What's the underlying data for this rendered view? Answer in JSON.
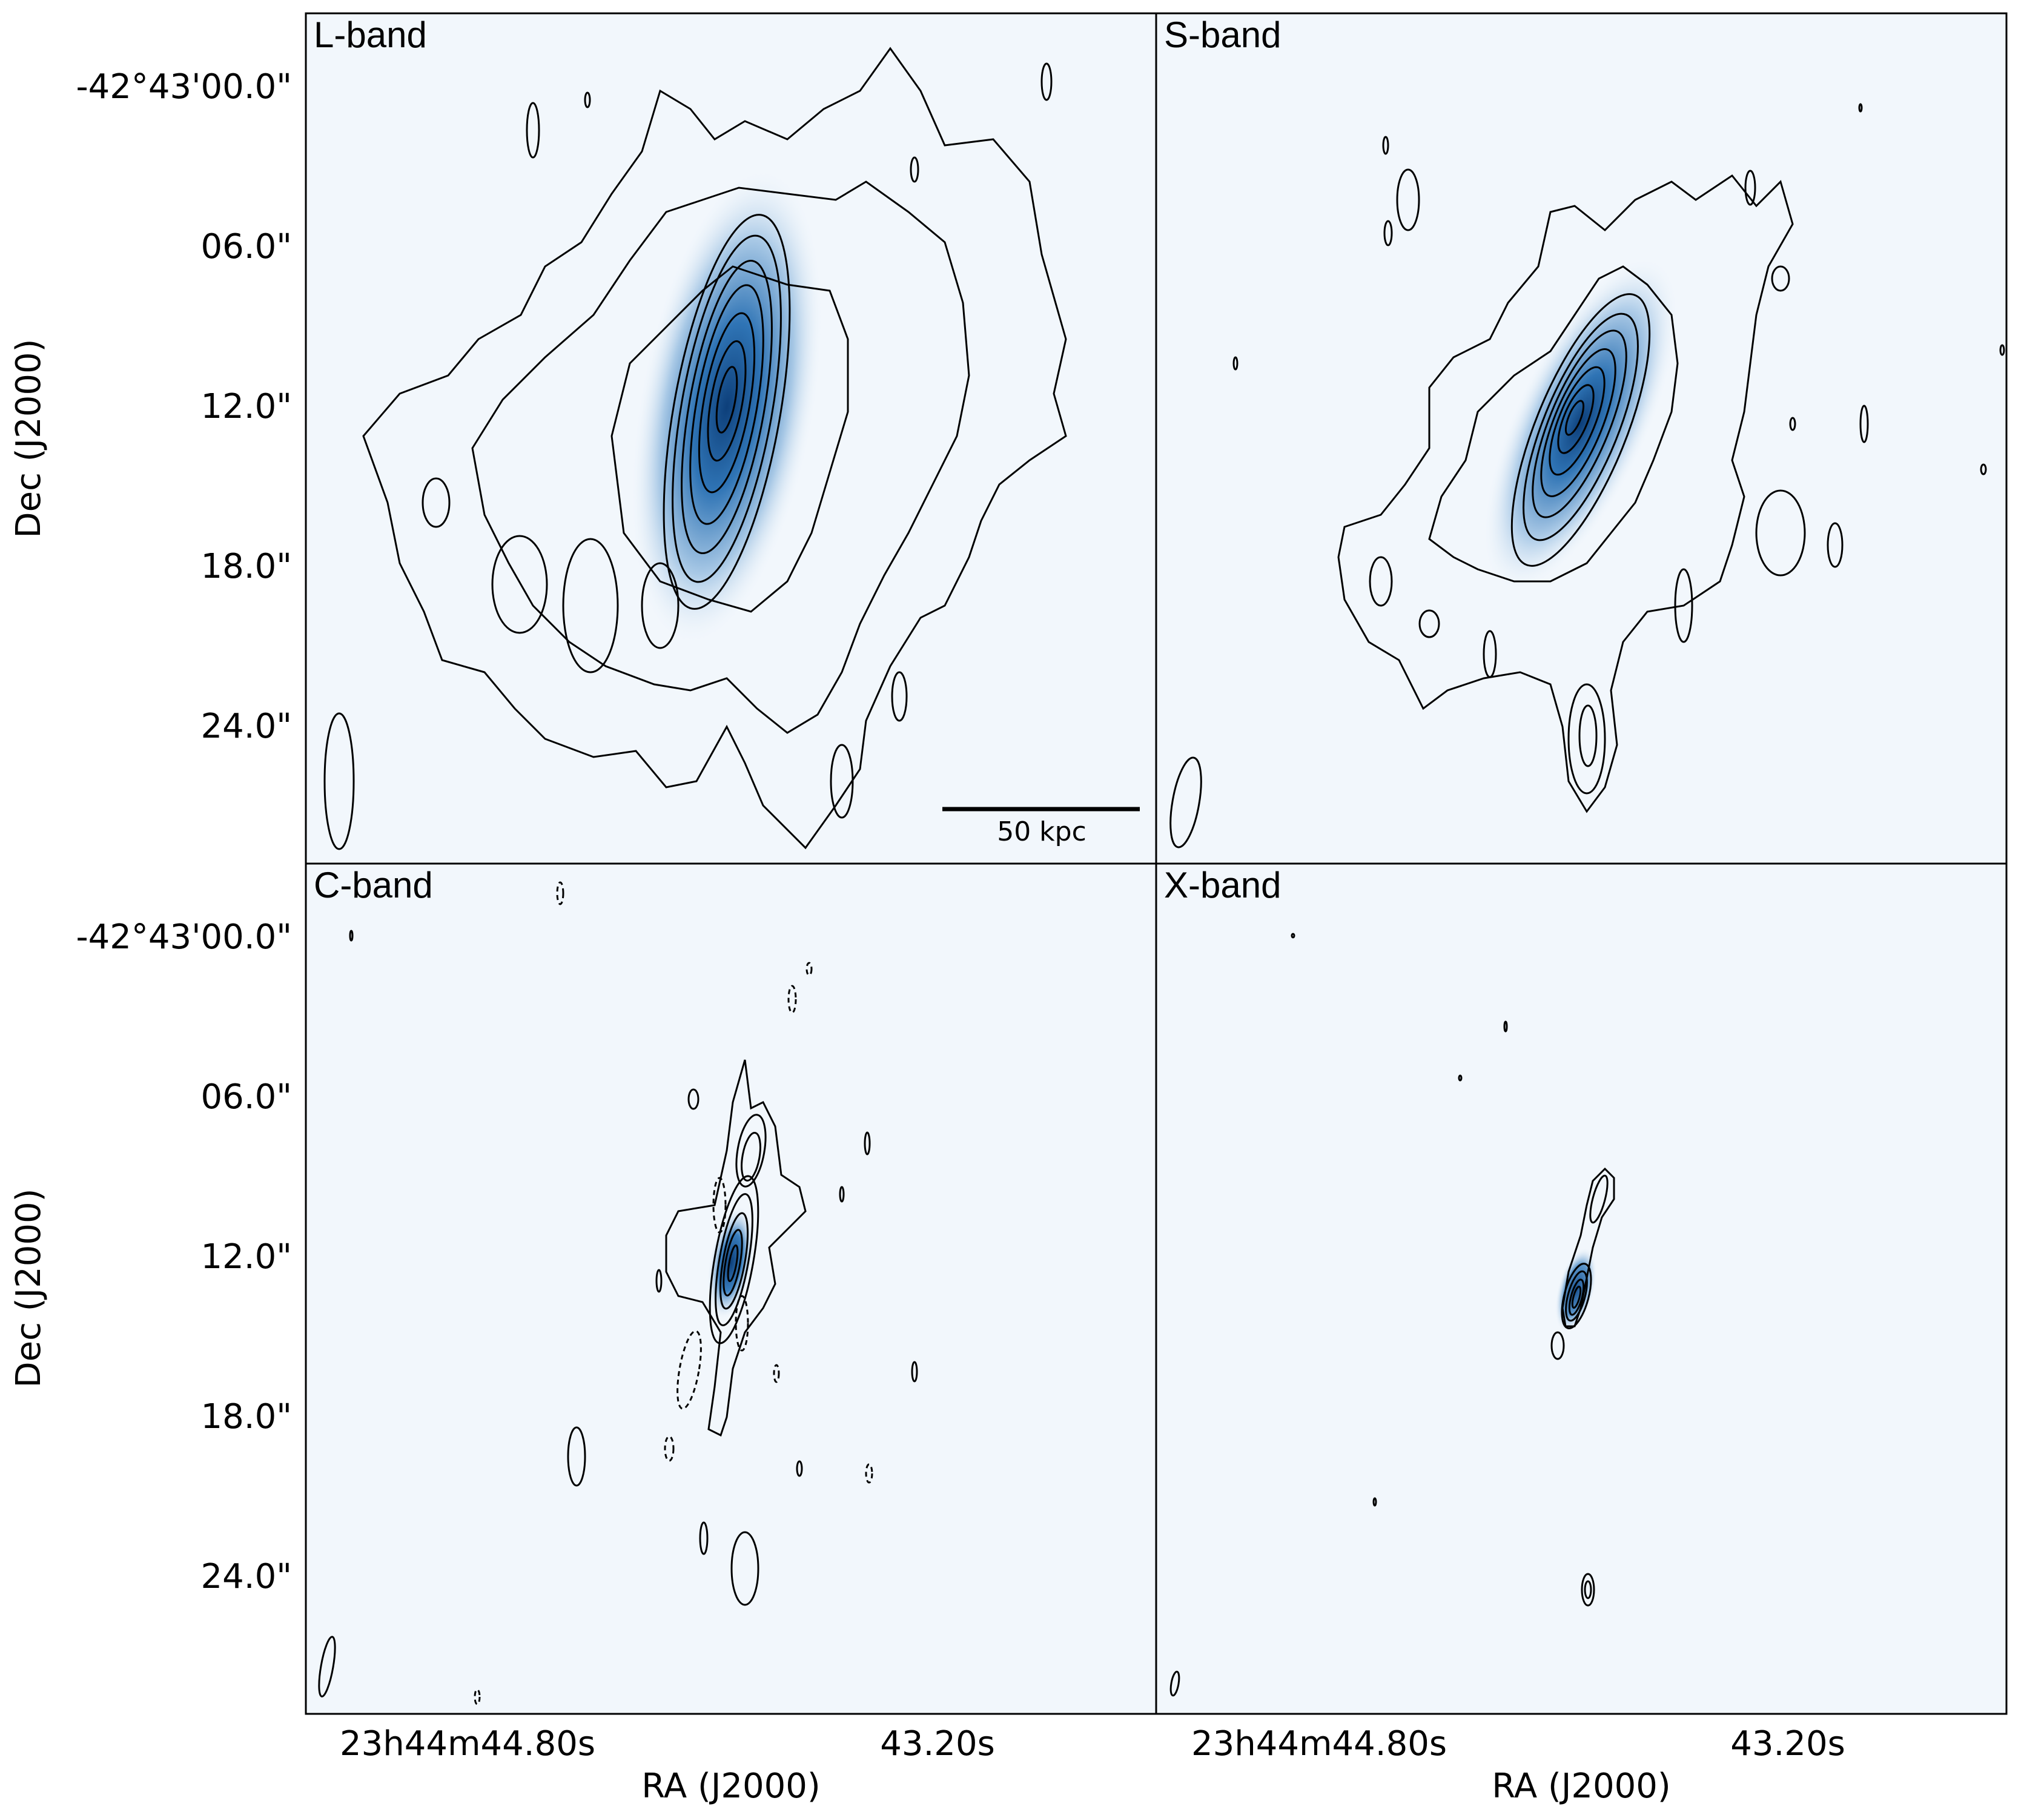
{
  "figure": {
    "panels": [
      {
        "id": "l",
        "band": "L-band"
      },
      {
        "id": "s",
        "band": "S-band"
      },
      {
        "id": "c",
        "band": "C-band"
      },
      {
        "id": "x",
        "band": "X-band"
      }
    ],
    "dec_axis": {
      "label": "Dec (J2000)",
      "ticks": [
        "-42°43'00.0\"",
        "06.0\"",
        "12.0\"",
        "18.0\"",
        "24.0\""
      ]
    },
    "ra_axis": {
      "label": "RA (J2000)",
      "ticks": [
        "23h44m44.80s",
        "43.20s"
      ]
    },
    "scale_bar": {
      "label": "50 kpc"
    },
    "colors": {
      "background": "#f2f7fc",
      "emission_core": "#0d3f7a",
      "emission_mid": "#2f74b5",
      "emission_faint": "#a9c9e6",
      "contour": "#000000",
      "frame": "#000000"
    },
    "contour_styles": [
      "solid positive contours",
      "dashed negative contours"
    ]
  }
}
